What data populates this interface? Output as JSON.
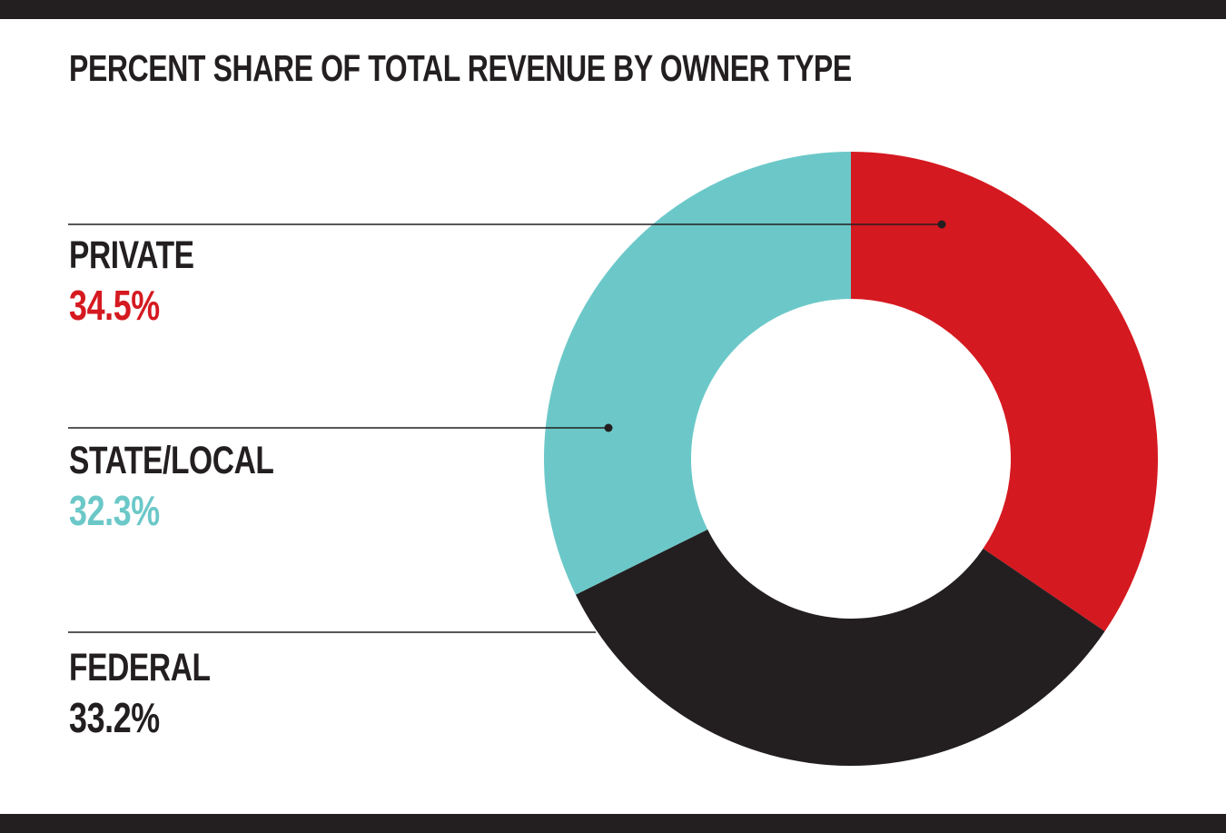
{
  "chart_data": {
    "type": "pie",
    "variant": "donut",
    "title": "PERCENT SHARE OF TOTAL REVENUE BY OWNER TYPE",
    "slices": [
      {
        "label": "PRIVATE",
        "value": 34.5,
        "value_label": "34.5%",
        "color": "#d51920"
      },
      {
        "label": "FEDERAL",
        "value": 33.2,
        "value_label": "33.2%",
        "color": "#231f20"
      },
      {
        "label": "STATE/LOCAL",
        "value": 32.3,
        "value_label": "32.3%",
        "color": "#6cc8c8"
      }
    ],
    "start": "12 o'clock",
    "direction": "clockwise"
  }
}
